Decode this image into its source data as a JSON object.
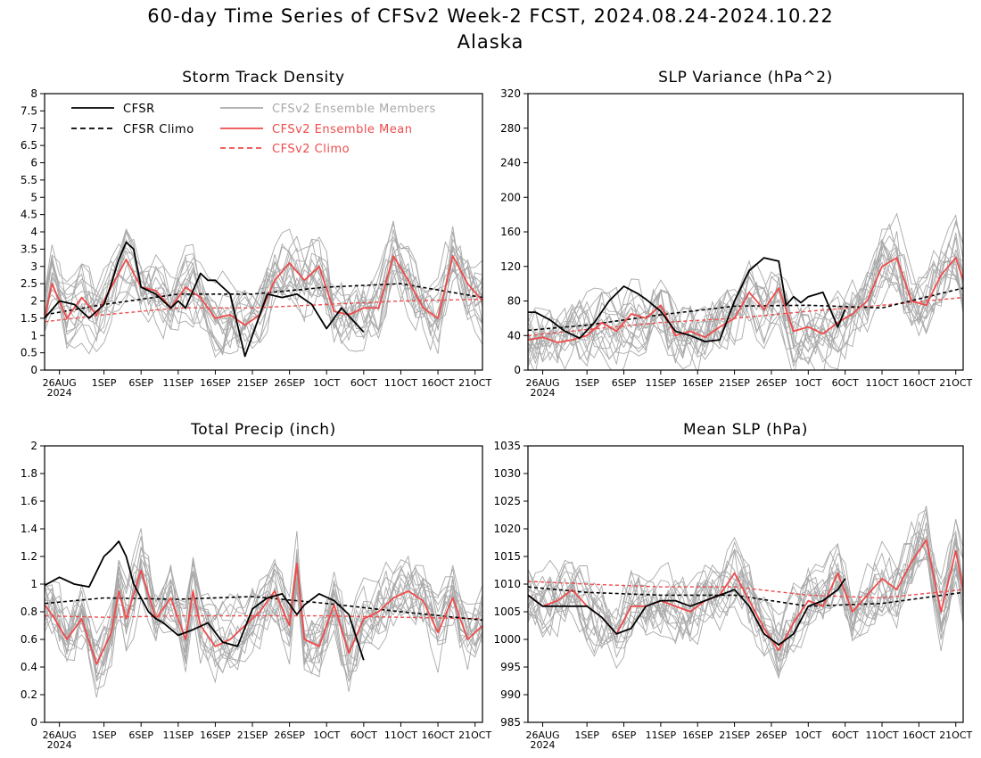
{
  "figure": {
    "title": "60-day Time Series of CFSv2 Week-2 FCST, 2024.08.24-2024.10.22",
    "subtitle": "Alaska"
  },
  "legend": {
    "cfsr": "CFSR",
    "cfsr_climo": "CFSR Climo",
    "members": "CFSv2 Ensemble Members",
    "ens_mean": "CFSv2 Ensemble Mean",
    "cfsv2_climo": "CFSv2 Climo"
  },
  "colors": {
    "cfsr": "#000000",
    "members": "#a9a9a9",
    "ens_mean": "#ef4b4b",
    "cfsv2_climo": "#ef4b4b"
  },
  "chart_data": [
    {
      "type": "line",
      "title": "Storm Track Density",
      "x_start": "2024-08-24",
      "x_end": "2024-10-22",
      "x_ticks": [
        "26AUG",
        "1SEP",
        "6SEP",
        "11SEP",
        "16SEP",
        "21SEP",
        "26SEP",
        "1OCT",
        "6OCT",
        "11OCT",
        "16OCT",
        "21OCT"
      ],
      "x_tick_text": [
        "26AUG",
        "1SEP",
        "6SEP",
        "11SEP",
        "16SEP",
        "21SEP",
        "26SEP",
        "1OCT",
        "6OCT",
        "11OCT",
        "16OCT",
        "21OCT"
      ],
      "x_year_label": "2024",
      "ylim": [
        0,
        8
      ],
      "y_ticks": [
        0,
        0.5,
        1,
        1.5,
        2,
        2.5,
        3,
        3.5,
        4,
        4.5,
        5,
        5.5,
        6,
        6.5,
        7,
        7.5,
        8
      ],
      "y_tick_text": [
        "0",
        "0.5",
        "1",
        "1.5",
        "2",
        "2.5",
        "3",
        "3.5",
        "4",
        "4.5",
        "5",
        "5.5",
        "6",
        "6.5",
        "7",
        "7.5",
        "8"
      ],
      "legend": true,
      "series": [
        {
          "name": "CFSR",
          "x": [
            "2024-08-24",
            "2024-08-26",
            "2024-08-28",
            "2024-08-30",
            "2024-09-01",
            "2024-09-02",
            "2024-09-03",
            "2024-09-04",
            "2024-09-05",
            "2024-09-06",
            "2024-09-08",
            "2024-09-10",
            "2024-09-11",
            "2024-09-12",
            "2024-09-14",
            "2024-09-15",
            "2024-09-16",
            "2024-09-18",
            "2024-09-20",
            "2024-09-21",
            "2024-09-23",
            "2024-09-25",
            "2024-09-27",
            "2024-09-29",
            "2024-10-01",
            "2024-10-03",
            "2024-10-06"
          ],
          "values": [
            1.5,
            2.0,
            1.9,
            1.5,
            1.9,
            2.5,
            3.2,
            3.7,
            3.5,
            2.4,
            2.2,
            1.8,
            2.0,
            1.8,
            2.8,
            2.6,
            2.6,
            2.2,
            0.4,
            1.0,
            2.2,
            2.1,
            2.2,
            1.9,
            1.2,
            1.8,
            1.1
          ]
        },
        {
          "name": "CFSR Climo",
          "x": [
            "2024-08-24",
            "2024-09-01",
            "2024-09-11",
            "2024-09-21",
            "2024-10-01",
            "2024-10-11",
            "2024-10-22"
          ],
          "values": [
            1.6,
            1.9,
            2.2,
            2.2,
            2.4,
            2.5,
            2.1
          ]
        },
        {
          "name": "CFSv2 Ensemble Mean",
          "x": [
            "2024-08-24",
            "2024-08-25",
            "2024-08-27",
            "2024-08-29",
            "2024-08-31",
            "2024-09-02",
            "2024-09-04",
            "2024-09-06",
            "2024-09-08",
            "2024-09-10",
            "2024-09-12",
            "2024-09-14",
            "2024-09-16",
            "2024-09-18",
            "2024-09-20",
            "2024-09-22",
            "2024-09-24",
            "2024-09-26",
            "2024-09-28",
            "2024-09-30",
            "2024-10-02",
            "2024-10-04",
            "2024-10-06",
            "2024-10-08",
            "2024-10-10",
            "2024-10-12",
            "2024-10-14",
            "2024-10-16",
            "2024-10-18",
            "2024-10-20",
            "2024-10-22"
          ],
          "values": [
            1.5,
            2.5,
            1.5,
            2.1,
            1.6,
            2.4,
            3.2,
            2.4,
            2.3,
            1.8,
            2.4,
            2.1,
            1.5,
            1.6,
            1.3,
            1.6,
            2.6,
            3.1,
            2.6,
            3.0,
            1.7,
            1.6,
            1.8,
            1.8,
            3.3,
            2.6,
            1.8,
            1.5,
            3.3,
            2.5,
            2.0
          ]
        },
        {
          "name": "CFSv2 Climo",
          "x": [
            "2024-08-24",
            "2024-09-01",
            "2024-09-11",
            "2024-09-21",
            "2024-10-01",
            "2024-10-11",
            "2024-10-22"
          ],
          "values": [
            1.4,
            1.6,
            1.8,
            1.8,
            1.9,
            2.0,
            2.05
          ]
        }
      ]
    },
    {
      "type": "line",
      "title": "SLP Variance (hPa^2)",
      "x_start": "2024-08-24",
      "x_end": "2024-10-22",
      "x_ticks": [
        "26AUG",
        "1SEP",
        "6SEP",
        "11SEP",
        "16SEP",
        "21SEP",
        "26SEP",
        "1OCT",
        "6OCT",
        "11OCT",
        "16OCT",
        "21OCT"
      ],
      "x_tick_text": [
        "26AUG",
        "1SEP",
        "6SEP",
        "11SEP",
        "16SEP",
        "21SEP",
        "26SEP",
        "1OCT",
        "6OCT",
        "11OCT",
        "16OCT",
        "21OCT"
      ],
      "x_year_label": "2024",
      "ylim": [
        0,
        320
      ],
      "y_ticks": [
        0,
        40,
        80,
        120,
        160,
        200,
        240,
        280,
        320
      ],
      "y_tick_text": [
        "0",
        "40",
        "80",
        "120",
        "160",
        "200",
        "240",
        "280",
        "320"
      ],
      "legend": false,
      "series": [
        {
          "name": "CFSR",
          "x": [
            "2024-08-24",
            "2024-08-25",
            "2024-08-27",
            "2024-08-29",
            "2024-08-31",
            "2024-09-02",
            "2024-09-04",
            "2024-09-06",
            "2024-09-08",
            "2024-09-09",
            "2024-09-11",
            "2024-09-13",
            "2024-09-15",
            "2024-09-17",
            "2024-09-19",
            "2024-09-21",
            "2024-09-23",
            "2024-09-25",
            "2024-09-27",
            "2024-09-28",
            "2024-09-29",
            "2024-09-30",
            "2024-10-01",
            "2024-10-03",
            "2024-10-05",
            "2024-10-06"
          ],
          "values": [
            67,
            67,
            58,
            45,
            37,
            55,
            80,
            97,
            88,
            82,
            68,
            45,
            40,
            33,
            35,
            80,
            115,
            130,
            126,
            75,
            85,
            78,
            85,
            90,
            50,
            70
          ]
        },
        {
          "name": "CFSR Climo",
          "x": [
            "2024-08-24",
            "2024-09-01",
            "2024-09-11",
            "2024-09-21",
            "2024-10-01",
            "2024-10-11",
            "2024-10-22"
          ],
          "values": [
            46,
            52,
            64,
            74,
            75,
            72,
            95
          ]
        },
        {
          "name": "CFSv2 Ensemble Mean",
          "x": [
            "2024-08-24",
            "2024-08-26",
            "2024-08-28",
            "2024-08-30",
            "2024-09-01",
            "2024-09-03",
            "2024-09-05",
            "2024-09-07",
            "2024-09-09",
            "2024-09-11",
            "2024-09-13",
            "2024-09-15",
            "2024-09-17",
            "2024-09-19",
            "2024-09-21",
            "2024-09-23",
            "2024-09-25",
            "2024-09-27",
            "2024-09-29",
            "2024-10-01",
            "2024-10-03",
            "2024-10-05",
            "2024-10-07",
            "2024-10-09",
            "2024-10-11",
            "2024-10-13",
            "2024-10-15",
            "2024-10-17",
            "2024-10-19",
            "2024-10-21",
            "2024-10-22"
          ],
          "values": [
            35,
            38,
            32,
            35,
            40,
            55,
            45,
            65,
            60,
            75,
            40,
            45,
            38,
            50,
            60,
            90,
            70,
            95,
            45,
            50,
            42,
            55,
            65,
            80,
            120,
            130,
            80,
            75,
            110,
            130,
            105
          ]
        },
        {
          "name": "CFSv2 Climo",
          "x": [
            "2024-08-24",
            "2024-09-01",
            "2024-09-11",
            "2024-09-21",
            "2024-10-01",
            "2024-10-11",
            "2024-10-22"
          ],
          "values": [
            40,
            47,
            55,
            60,
            68,
            75,
            84
          ]
        }
      ]
    },
    {
      "type": "line",
      "title": "Total Precip (inch)",
      "x_start": "2024-08-24",
      "x_end": "2024-10-22",
      "x_ticks": [
        "26AUG",
        "1SEP",
        "6SEP",
        "11SEP",
        "16SEP",
        "21SEP",
        "26SEP",
        "1OCT",
        "6OCT",
        "11OCT",
        "16OCT",
        "21OCT"
      ],
      "x_tick_text": [
        "26AUG",
        "1SEP",
        "6SEP",
        "11SEP",
        "16SEP",
        "21SEP",
        "26SEP",
        "1OCT",
        "6OCT",
        "11OCT",
        "16OCT",
        "21OCT"
      ],
      "x_year_label": "2024",
      "ylim": [
        0,
        2
      ],
      "y_ticks": [
        0,
        0.2,
        0.4,
        0.6,
        0.8,
        1,
        1.2,
        1.4,
        1.6,
        1.8,
        2
      ],
      "y_tick_text": [
        "0",
        "0.2",
        "0.4",
        "0.6",
        "0.8",
        "1",
        "1.2",
        "1.4",
        "1.6",
        "1.8",
        "2"
      ],
      "legend": false,
      "series": [
        {
          "name": "CFSR",
          "x": [
            "2024-08-24",
            "2024-08-26",
            "2024-08-28",
            "2024-08-30",
            "2024-09-01",
            "2024-09-02",
            "2024-09-03",
            "2024-09-04",
            "2024-09-05",
            "2024-09-07",
            "2024-09-08",
            "2024-09-09",
            "2024-09-11",
            "2024-09-13",
            "2024-09-15",
            "2024-09-17",
            "2024-09-19",
            "2024-09-21",
            "2024-09-23",
            "2024-09-25",
            "2024-09-27",
            "2024-09-28",
            "2024-09-30",
            "2024-10-02",
            "2024-10-04",
            "2024-10-06"
          ],
          "values": [
            0.99,
            1.05,
            1.0,
            0.98,
            1.2,
            1.25,
            1.31,
            1.2,
            1.0,
            0.8,
            0.75,
            0.72,
            0.63,
            0.67,
            0.72,
            0.58,
            0.55,
            0.82,
            0.9,
            0.93,
            0.78,
            0.85,
            0.93,
            0.88,
            0.78,
            0.45
          ]
        },
        {
          "name": "CFSR Climo",
          "x": [
            "2024-08-24",
            "2024-09-01",
            "2024-09-11",
            "2024-09-21",
            "2024-10-01",
            "2024-10-11",
            "2024-10-22"
          ],
          "values": [
            0.86,
            0.9,
            0.89,
            0.91,
            0.86,
            0.8,
            0.74
          ]
        },
        {
          "name": "CFSv2 Ensemble Mean",
          "x": [
            "2024-08-24",
            "2024-08-25",
            "2024-08-27",
            "2024-08-29",
            "2024-08-31",
            "2024-09-02",
            "2024-09-03",
            "2024-09-04",
            "2024-09-06",
            "2024-09-08",
            "2024-09-10",
            "2024-09-12",
            "2024-09-13",
            "2024-09-14",
            "2024-09-16",
            "2024-09-18",
            "2024-09-20",
            "2024-09-22",
            "2024-09-24",
            "2024-09-26",
            "2024-09-27",
            "2024-09-28",
            "2024-09-30",
            "2024-10-02",
            "2024-10-04",
            "2024-10-06",
            "2024-10-08",
            "2024-10-10",
            "2024-10-12",
            "2024-10-14",
            "2024-10-16",
            "2024-10-18",
            "2024-10-20",
            "2024-10-22"
          ],
          "values": [
            0.85,
            0.78,
            0.6,
            0.75,
            0.42,
            0.65,
            0.95,
            0.75,
            1.1,
            0.75,
            0.9,
            0.6,
            0.95,
            0.7,
            0.55,
            0.6,
            0.7,
            0.8,
            0.95,
            0.7,
            1.15,
            0.6,
            0.55,
            0.85,
            0.5,
            0.75,
            0.8,
            0.9,
            0.95,
            0.88,
            0.65,
            0.9,
            0.6,
            0.7
          ]
        },
        {
          "name": "CFSv2 Climo",
          "x": [
            "2024-08-24",
            "2024-09-01",
            "2024-09-11",
            "2024-09-21",
            "2024-10-01",
            "2024-10-11",
            "2024-10-22"
          ],
          "values": [
            0.77,
            0.76,
            0.77,
            0.77,
            0.77,
            0.76,
            0.75
          ]
        }
      ]
    },
    {
      "type": "line",
      "title": "Mean SLP (hPa)",
      "x_start": "2024-08-24",
      "x_end": "2024-10-22",
      "x_ticks": [
        "26AUG",
        "1SEP",
        "6SEP",
        "11SEP",
        "16SEP",
        "21SEP",
        "26SEP",
        "1OCT",
        "6OCT",
        "11OCT",
        "16OCT",
        "21OCT"
      ],
      "x_tick_text": [
        "26AUG",
        "1SEP",
        "6SEP",
        "11SEP",
        "16SEP",
        "21SEP",
        "26SEP",
        "1OCT",
        "6OCT",
        "11OCT",
        "16OCT",
        "21OCT"
      ],
      "x_year_label": "2024",
      "ylim": [
        985,
        1035
      ],
      "y_ticks": [
        985,
        990,
        995,
        1000,
        1005,
        1010,
        1015,
        1020,
        1025,
        1030,
        1035
      ],
      "y_tick_text": [
        "985",
        "990",
        "995",
        "1000",
        "1005",
        "1010",
        "1015",
        "1020",
        "1025",
        "1030",
        "1035"
      ],
      "legend": false,
      "series": [
        {
          "name": "CFSR",
          "x": [
            "2024-08-24",
            "2024-08-26",
            "2024-08-28",
            "2024-08-30",
            "2024-09-01",
            "2024-09-03",
            "2024-09-05",
            "2024-09-07",
            "2024-09-09",
            "2024-09-11",
            "2024-09-13",
            "2024-09-15",
            "2024-09-17",
            "2024-09-19",
            "2024-09-21",
            "2024-09-23",
            "2024-09-25",
            "2024-09-27",
            "2024-09-29",
            "2024-10-01",
            "2024-10-03",
            "2024-10-05",
            "2024-10-06"
          ],
          "values": [
            1008,
            1006,
            1006,
            1006,
            1006,
            1004,
            1001,
            1002,
            1006,
            1007,
            1007,
            1006,
            1007,
            1008,
            1009,
            1006,
            1001,
            999,
            1001,
            1006,
            1007,
            1009,
            1011
          ]
        },
        {
          "name": "CFSR Climo",
          "x": [
            "2024-08-24",
            "2024-09-01",
            "2024-09-11",
            "2024-09-21",
            "2024-10-01",
            "2024-10-11",
            "2024-10-22"
          ],
          "values": [
            1009.5,
            1008.5,
            1008,
            1008,
            1006,
            1006.5,
            1008.5
          ]
        },
        {
          "name": "CFSv2 Ensemble Mean",
          "x": [
            "2024-08-24",
            "2024-08-26",
            "2024-08-28",
            "2024-08-30",
            "2024-09-01",
            "2024-09-03",
            "2024-09-05",
            "2024-09-07",
            "2024-09-09",
            "2024-09-11",
            "2024-09-13",
            "2024-09-15",
            "2024-09-17",
            "2024-09-19",
            "2024-09-21",
            "2024-09-23",
            "2024-09-25",
            "2024-09-27",
            "2024-09-29",
            "2024-10-01",
            "2024-10-03",
            "2024-10-05",
            "2024-10-07",
            "2024-10-09",
            "2024-10-11",
            "2024-10-13",
            "2024-10-15",
            "2024-10-17",
            "2024-10-19",
            "2024-10-21",
            "2024-10-22"
          ],
          "values": [
            1008,
            1006,
            1007,
            1009,
            1006,
            1004,
            1001,
            1006,
            1006,
            1007,
            1006,
            1005,
            1007,
            1008,
            1012,
            1007,
            1002,
            998,
            1003,
            1007,
            1006,
            1012,
            1005,
            1008,
            1011,
            1009,
            1014,
            1018,
            1005,
            1016,
            1009
          ]
        },
        {
          "name": "CFSv2 Climo",
          "x": [
            "2024-08-24",
            "2024-09-01",
            "2024-09-11",
            "2024-09-21",
            "2024-10-01",
            "2024-10-11",
            "2024-10-22"
          ],
          "values": [
            1010.5,
            1010,
            1009.5,
            1009.5,
            1008,
            1007.5,
            1009
          ]
        }
      ]
    }
  ]
}
